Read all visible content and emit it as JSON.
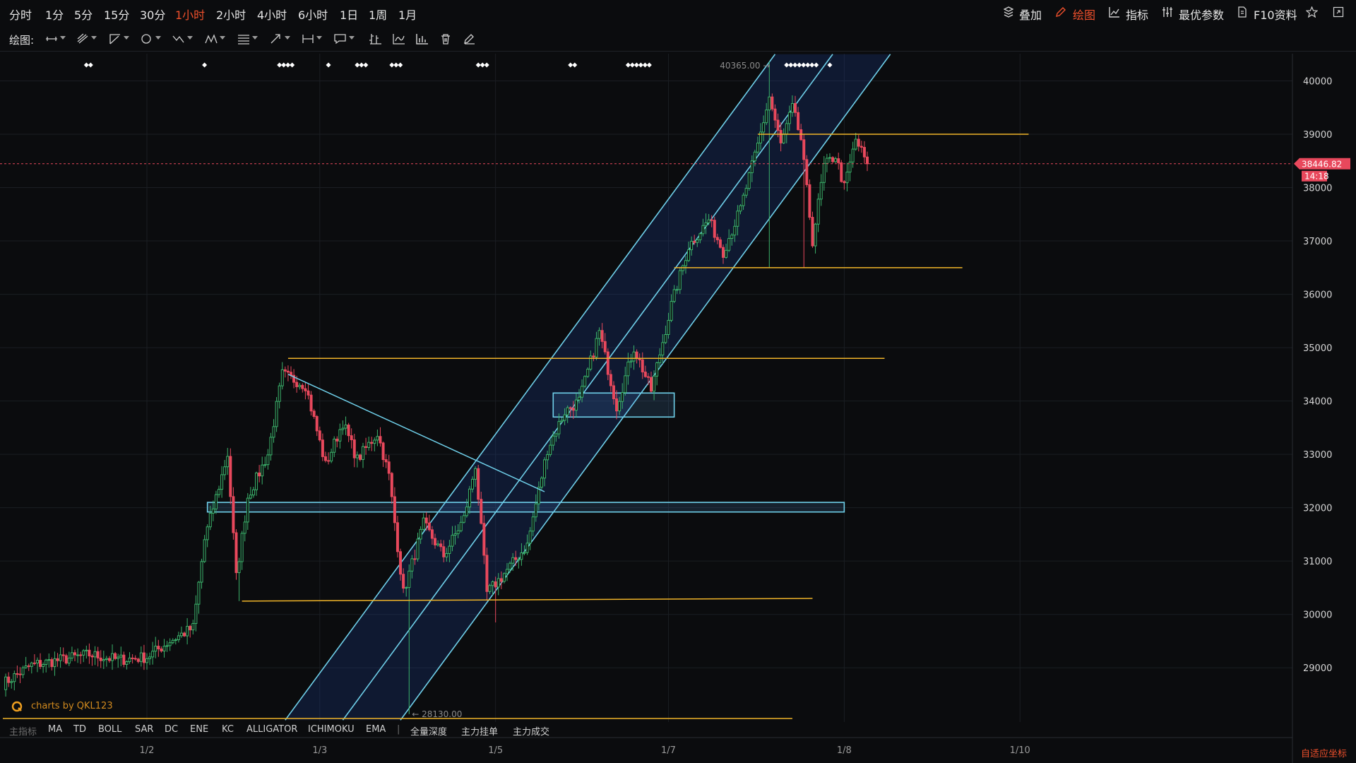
{
  "toolbar": {
    "timeframes": [
      "分时",
      "1分",
      "5分",
      "15分",
      "30分",
      "1小时",
      "2小时",
      "4小时",
      "6小时",
      "1日",
      "1周",
      "1月"
    ],
    "active_timeframe": "1小时",
    "overlay_label": "叠加",
    "draw_label": "绘图",
    "indicator_label": "指标",
    "best_params_label": "最优参数",
    "f10_label": "F10资料"
  },
  "drawbar": {
    "label": "绘图:"
  },
  "indicators": {
    "main_label": "主指标",
    "items": [
      "MA",
      "TD",
      "BOLL",
      "SAR",
      "DC",
      "ENE",
      "KC",
      "ALLIGATOR",
      "ICHIMOKU",
      "EMA"
    ],
    "extra": [
      "全量深度",
      "主力挂单",
      "主力成交"
    ]
  },
  "watermark": "charts by QKL123",
  "axis_mode_label": "自适应坐标",
  "chart_data": {
    "type": "candlestick",
    "ylim": [
      28000,
      40500
    ],
    "y_ticks": [
      29000,
      30000,
      31000,
      32000,
      33000,
      34000,
      35000,
      36000,
      37000,
      38000,
      39000,
      40000
    ],
    "x_ticks": [
      {
        "label": "1/2",
        "index": 50
      },
      {
        "label": "1/3",
        "index": 110
      },
      {
        "label": "1/5",
        "index": 171
      },
      {
        "label": "1/7",
        "index": 231
      },
      {
        "label": "1/8",
        "index": 292
      },
      {
        "label": "1/10",
        "index": 353
      }
    ],
    "bars_total": 382,
    "current_price": "38446.82",
    "countdown": "14:18",
    "high_label": "40365.00",
    "low_label": "28130.00",
    "keypoints": [
      {
        "i": 0,
        "p": 28700
      },
      {
        "i": 10,
        "p": 29050
      },
      {
        "i": 20,
        "p": 29150
      },
      {
        "i": 30,
        "p": 29250
      },
      {
        "i": 40,
        "p": 29150
      },
      {
        "i": 50,
        "p": 29200
      },
      {
        "i": 58,
        "p": 29500
      },
      {
        "i": 66,
        "p": 29750
      },
      {
        "i": 70,
        "p": 31400
      },
      {
        "i": 78,
        "p": 33000
      },
      {
        "i": 81,
        "p": 30700
      },
      {
        "i": 85,
        "p": 32200
      },
      {
        "i": 92,
        "p": 33000
      },
      {
        "i": 97,
        "p": 34500
      },
      {
        "i": 105,
        "p": 34300
      },
      {
        "i": 112,
        "p": 32800
      },
      {
        "i": 118,
        "p": 33600
      },
      {
        "i": 123,
        "p": 32900
      },
      {
        "i": 130,
        "p": 33400
      },
      {
        "i": 134,
        "p": 32600
      },
      {
        "i": 139,
        "p": 30400
      },
      {
        "i": 146,
        "p": 31700
      },
      {
        "i": 153,
        "p": 31100
      },
      {
        "i": 160,
        "p": 31800
      },
      {
        "i": 164,
        "p": 32800
      },
      {
        "i": 168,
        "p": 30400
      },
      {
        "i": 173,
        "p": 30700
      },
      {
        "i": 182,
        "p": 31300
      },
      {
        "i": 189,
        "p": 33100
      },
      {
        "i": 195,
        "p": 33800
      },
      {
        "i": 200,
        "p": 34000
      },
      {
        "i": 207,
        "p": 35300
      },
      {
        "i": 213,
        "p": 33900
      },
      {
        "i": 219,
        "p": 35000
      },
      {
        "i": 225,
        "p": 34200
      },
      {
        "i": 232,
        "p": 35800
      },
      {
        "i": 238,
        "p": 36900
      },
      {
        "i": 245,
        "p": 37400
      },
      {
        "i": 250,
        "p": 36800
      },
      {
        "i": 256,
        "p": 37600
      },
      {
        "i": 262,
        "p": 38800
      },
      {
        "i": 266,
        "p": 39700
      },
      {
        "i": 270,
        "p": 38800
      },
      {
        "i": 274,
        "p": 39500
      },
      {
        "i": 277,
        "p": 38900
      },
      {
        "i": 281,
        "p": 37000
      },
      {
        "i": 285,
        "p": 38400
      },
      {
        "i": 289,
        "p": 38600
      },
      {
        "i": 292,
        "p": 38000
      },
      {
        "i": 296,
        "p": 38900
      },
      {
        "i": 300,
        "p": 38446.82
      }
    ],
    "spikes": [
      {
        "i": 141,
        "low": 28130
      },
      {
        "i": 171,
        "low": 29850
      },
      {
        "i": 266,
        "high": 40365
      },
      {
        "i": 266,
        "low": 36500
      },
      {
        "i": 278,
        "low": 36500
      },
      {
        "i": 82,
        "low": 30250
      }
    ],
    "horizontal_levels": [
      {
        "price": 39000,
        "x1_index": 262,
        "x2_index": 356
      },
      {
        "price": 36500,
        "x1_index": 233,
        "x2_index": 333
      },
      {
        "price": 34800,
        "x1_index": 99,
        "x2_index": 306
      },
      {
        "price": 28050,
        "x1_index": 0,
        "x2_index": 274
      }
    ],
    "sloped_levels": [
      {
        "i1": 83,
        "p1": 30250,
        "i2": 281,
        "p2": 30300
      }
    ],
    "trendline": {
      "i1": 99,
      "p1": 34500,
      "i2": 188,
      "p2": 32300
    },
    "channel": {
      "upper": {
        "i1": 98,
        "p1": 28020,
        "i2": 268,
        "p2": 40500
      },
      "middle": {
        "i1": 118,
        "p1": 28020,
        "i2": 288,
        "p2": 40500
      },
      "lower": {
        "i1": 138,
        "p1": 28020,
        "i2": 308,
        "p2": 40500
      }
    },
    "boxes": [
      {
        "i1": 71,
        "i2": 292,
        "p1": 32100,
        "p2": 31920
      },
      {
        "i1": 191,
        "i2": 233,
        "p1": 34150,
        "p2": 33700
      }
    ],
    "signal_markers": [
      {
        "i": 29,
        "n": 2
      },
      {
        "i": 70,
        "n": 1
      },
      {
        "i": 96,
        "n": 4
      },
      {
        "i": 113,
        "n": 1
      },
      {
        "i": 123,
        "n": 3
      },
      {
        "i": 135,
        "n": 3
      },
      {
        "i": 165,
        "n": 3
      },
      {
        "i": 197,
        "n": 2
      },
      {
        "i": 217,
        "n": 6
      },
      {
        "i": 272,
        "n": 8
      },
      {
        "i": 287,
        "n": 1
      }
    ]
  }
}
